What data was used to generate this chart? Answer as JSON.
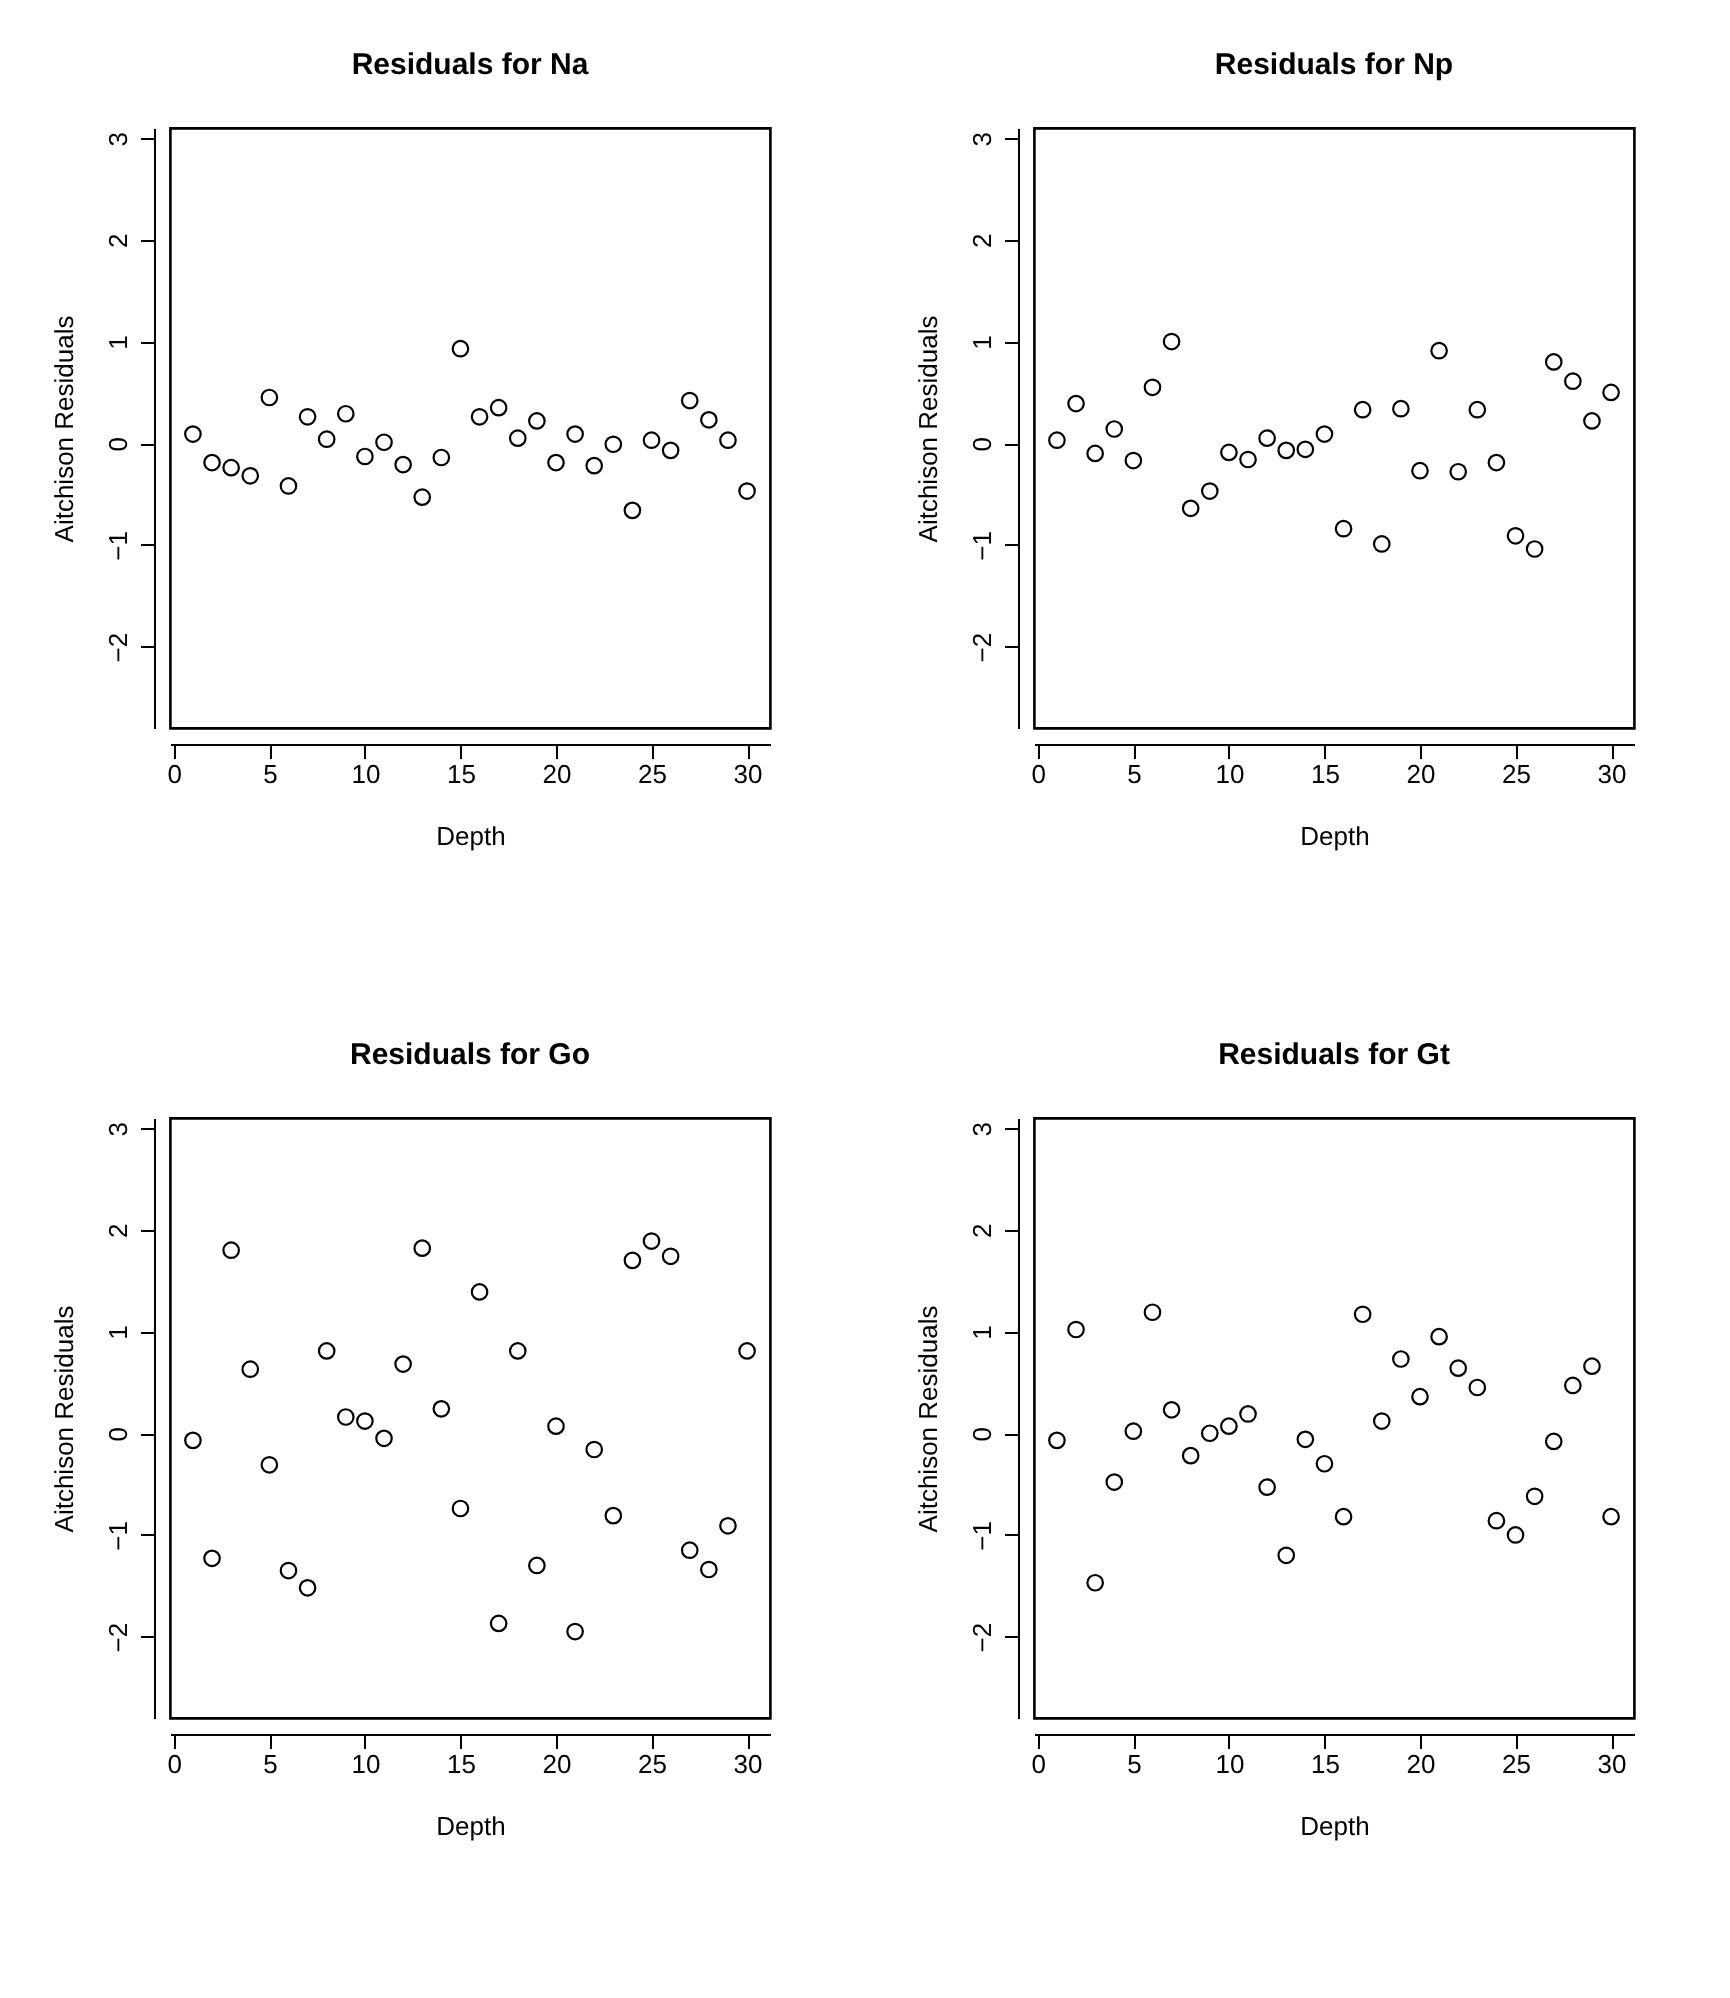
{
  "chart_data": [
    {
      "type": "scatter",
      "title": "Residuals for Na",
      "xlabel": "Depth",
      "ylabel": "Aitchison Residuals",
      "color": "#000000",
      "marker": "circle",
      "grid": false,
      "xlim": [
        -0.2,
        31.2
      ],
      "ylim": [
        -2.8,
        3.1
      ],
      "xticks": [
        0,
        5,
        10,
        15,
        20,
        25,
        30
      ],
      "yticks": [
        -2,
        -1,
        0,
        1,
        2,
        3
      ],
      "x": [
        1,
        2,
        3,
        4,
        5,
        6,
        7,
        8,
        9,
        10,
        11,
        12,
        13,
        14,
        15,
        16,
        17,
        18,
        19,
        20,
        21,
        22,
        23,
        24,
        25,
        26,
        27,
        28,
        29,
        30
      ],
      "values": [
        0.09,
        -0.19,
        -0.24,
        -0.32,
        0.45,
        -0.42,
        0.26,
        0.04,
        0.29,
        -0.13,
        0.01,
        -0.21,
        -0.53,
        -0.14,
        0.93,
        0.26,
        0.35,
        0.05,
        0.22,
        -0.19,
        0.09,
        -0.22,
        -0.01,
        -0.66,
        0.03,
        -0.07,
        0.42,
        0.23,
        0.03,
        -0.47
      ]
    },
    {
      "type": "scatter",
      "title": "Residuals for Np",
      "xlabel": "Depth",
      "ylabel": "Aitchison Residuals",
      "color": "#000000",
      "marker": "circle",
      "grid": false,
      "xlim": [
        -0.2,
        31.2
      ],
      "ylim": [
        -2.8,
        3.1
      ],
      "xticks": [
        0,
        5,
        10,
        15,
        20,
        25,
        30
      ],
      "yticks": [
        -2,
        -1,
        0,
        1,
        2,
        3
      ],
      "x": [
        1,
        2,
        3,
        4,
        5,
        6,
        7,
        8,
        9,
        10,
        11,
        12,
        13,
        14,
        15,
        16,
        17,
        18,
        19,
        20,
        21,
        22,
        23,
        24,
        25,
        26,
        27,
        28,
        29,
        30
      ],
      "values": [
        0.03,
        0.39,
        -0.1,
        0.14,
        -0.17,
        0.55,
        1.0,
        -0.64,
        -0.47,
        -0.09,
        -0.16,
        0.05,
        -0.07,
        -0.06,
        0.09,
        -0.84,
        0.33,
        -0.99,
        0.34,
        -0.27,
        0.91,
        -0.28,
        0.33,
        -0.19,
        -0.91,
        -1.04,
        0.8,
        0.61,
        0.22,
        0.5
      ]
    },
    {
      "type": "scatter",
      "title": "Residuals for Go",
      "xlabel": "Depth",
      "ylabel": "Aitchison Residuals",
      "color": "#000000",
      "marker": "circle",
      "grid": false,
      "xlim": [
        -0.2,
        31.2
      ],
      "ylim": [
        -2.8,
        3.1
      ],
      "xticks": [
        0,
        5,
        10,
        15,
        20,
        25,
        30
      ],
      "yticks": [
        -2,
        -1,
        0,
        1,
        2,
        3
      ],
      "x": [
        1,
        2,
        3,
        4,
        5,
        6,
        7,
        8,
        9,
        10,
        11,
        12,
        13,
        14,
        15,
        16,
        17,
        18,
        19,
        20,
        21,
        22,
        23,
        24,
        25,
        26,
        27,
        28,
        29,
        30
      ],
      "values": [
        -0.07,
        -1.23,
        1.8,
        0.63,
        -0.31,
        -1.35,
        -1.52,
        0.81,
        0.16,
        0.12,
        -0.05,
        0.68,
        1.82,
        0.24,
        -0.74,
        1.39,
        -1.87,
        0.81,
        -1.3,
        0.07,
        -1.95,
        -0.16,
        -0.81,
        1.7,
        1.89,
        1.74,
        -1.15,
        -1.34,
        -0.91,
        0.81
      ]
    },
    {
      "type": "scatter",
      "title": "Residuals for Gt",
      "xlabel": "Depth",
      "ylabel": "Aitchison Residuals",
      "color": "#000000",
      "marker": "circle",
      "grid": false,
      "xlim": [
        -0.2,
        31.2
      ],
      "ylim": [
        -2.8,
        3.1
      ],
      "xticks": [
        0,
        5,
        10,
        15,
        20,
        25,
        30
      ],
      "yticks": [
        -2,
        -1,
        0,
        1,
        2,
        3
      ],
      "x": [
        1,
        2,
        3,
        4,
        5,
        6,
        7,
        8,
        9,
        10,
        11,
        12,
        13,
        14,
        15,
        16,
        17,
        18,
        19,
        20,
        21,
        22,
        23,
        24,
        25,
        26,
        27,
        28,
        29,
        30
      ],
      "values": [
        -0.07,
        1.02,
        -1.47,
        -0.48,
        0.02,
        1.19,
        0.23,
        -0.22,
        0.0,
        0.07,
        0.19,
        -0.53,
        -1.2,
        -0.06,
        -0.3,
        -0.82,
        1.17,
        0.12,
        0.73,
        0.36,
        0.95,
        0.64,
        0.45,
        -0.86,
        -1.0,
        -0.62,
        -0.08,
        0.47,
        0.66,
        -0.82
      ]
    }
  ]
}
